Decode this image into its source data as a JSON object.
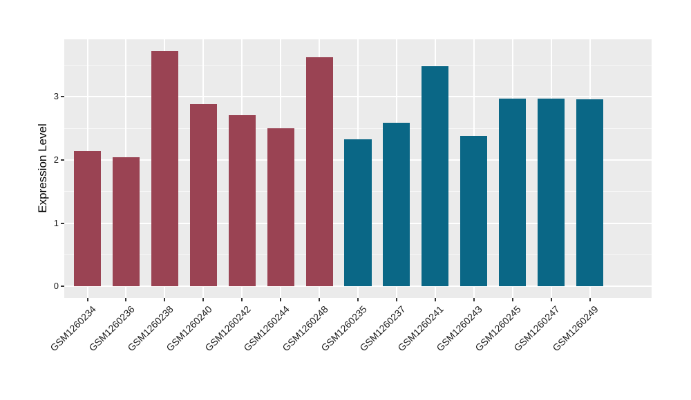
{
  "figure": {
    "background": "#FFFFFF",
    "panel_background": "#EBEBEB",
    "gridline_color": "#FFFFFF"
  },
  "chart_data": {
    "type": "bar",
    "title": "",
    "xlabel": "",
    "ylabel": "Expression Level",
    "legend": "none",
    "grid": "major and minor horizontal white gridlines, major vertical white gridlines at each category",
    "categories": [
      "GSM1260234",
      "GSM1260236",
      "GSM1260238",
      "GSM1260240",
      "GSM1260242",
      "GSM1260244",
      "GSM1260248",
      "GSM1260235",
      "GSM1260237",
      "GSM1260241",
      "GSM1260243",
      "GSM1260245",
      "GSM1260247",
      "GSM1260249"
    ],
    "values": [
      2.14,
      2.04,
      3.73,
      2.88,
      2.71,
      2.5,
      3.63,
      2.33,
      2.59,
      3.49,
      2.38,
      2.97,
      2.97,
      2.96
    ],
    "bar_colors": [
      "#9A4353",
      "#9A4353",
      "#9A4353",
      "#9A4353",
      "#9A4353",
      "#9A4353",
      "#9A4353",
      "#0A6786",
      "#0A6786",
      "#0A6786",
      "#0A6786",
      "#0A6786",
      "#0A6786",
      "#0A6786"
    ],
    "group_colors": {
      "left_group": "#9A4353",
      "right_group": "#0A6786"
    },
    "y_axis": {
      "major_ticks": [
        0,
        1,
        2,
        3
      ],
      "minor_ticks": [
        0.5,
        1.5,
        2.5,
        3.5
      ],
      "range_bottom": -0.18,
      "range_top": 3.91
    }
  }
}
